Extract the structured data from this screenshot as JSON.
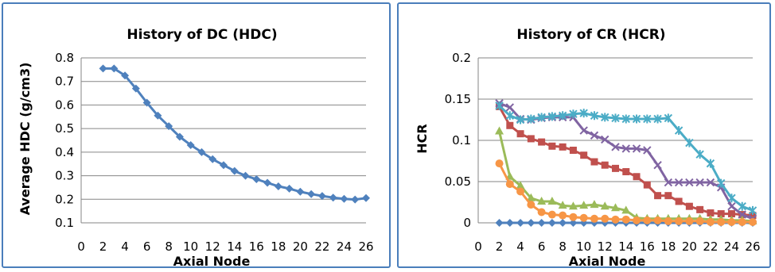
{
  "chart_data": [
    {
      "type": "line",
      "title": "History of DC (HDC)",
      "xlabel": "Axial Node",
      "ylabel": "Average HDC (g/cm3)",
      "xlim": [
        0,
        26
      ],
      "ylim": [
        0.1,
        0.8
      ],
      "xticks": [
        0,
        2,
        4,
        6,
        8,
        10,
        12,
        14,
        16,
        18,
        20,
        22,
        24,
        26
      ],
      "yticks": [
        0.1,
        0.2,
        0.3,
        0.4,
        0.5,
        0.6,
        0.7,
        0.8
      ],
      "ytick_labels": [
        "0.1",
        "0.2",
        "0.3",
        "0.4",
        "0.5",
        "0.6",
        "0.7",
        "0.8"
      ],
      "grid": "horizontal",
      "series": [
        {
          "color": "#4f81bd",
          "marker": "diamond",
          "x": [
            2,
            3,
            4,
            5,
            6,
            7,
            8,
            9,
            10,
            11,
            12,
            13,
            14,
            15,
            16,
            17,
            18,
            19,
            20,
            21,
            22,
            23,
            24,
            25,
            26
          ],
          "values": [
            0.755,
            0.755,
            0.725,
            0.67,
            0.61,
            0.555,
            0.51,
            0.465,
            0.43,
            0.4,
            0.37,
            0.345,
            0.32,
            0.3,
            0.285,
            0.27,
            0.255,
            0.245,
            0.232,
            0.222,
            0.214,
            0.207,
            0.202,
            0.199,
            0.205
          ]
        }
      ]
    },
    {
      "type": "line",
      "title": "History of CR (HCR)",
      "xlabel": "Axial Node",
      "ylabel": "HCR",
      "xlim": [
        0,
        26
      ],
      "ylim": [
        0,
        0.2
      ],
      "xticks": [
        0,
        2,
        4,
        6,
        8,
        10,
        12,
        14,
        16,
        18,
        20,
        22,
        24,
        26
      ],
      "yticks": [
        0,
        0.05,
        0.1,
        0.15,
        0.2
      ],
      "ytick_labels": [
        "0",
        "0.05",
        "0.1",
        "0.15",
        "0.2"
      ],
      "grid": "horizontal",
      "series": [
        {
          "color": "#4f81bd",
          "marker": "diamond",
          "x": [
            2,
            3,
            4,
            5,
            6,
            7,
            8,
            9,
            10,
            11,
            12,
            13,
            14,
            15,
            16,
            17,
            18,
            19,
            20,
            21,
            22,
            23,
            24,
            25,
            26
          ],
          "values": [
            0,
            0,
            0,
            0,
            0,
            0,
            0,
            0,
            0,
            0,
            0,
            0,
            0,
            0,
            0,
            0,
            0,
            0,
            0,
            0,
            0,
            0,
            0,
            0,
            0
          ]
        },
        {
          "color": "#c0504d",
          "marker": "square",
          "x": [
            2,
            3,
            4,
            5,
            6,
            7,
            8,
            9,
            10,
            11,
            12,
            13,
            14,
            15,
            16,
            17,
            18,
            19,
            20,
            21,
            22,
            23,
            24,
            25,
            26
          ],
          "values": [
            0.141,
            0.118,
            0.108,
            0.102,
            0.098,
            0.093,
            0.092,
            0.088,
            0.082,
            0.074,
            0.07,
            0.066,
            0.062,
            0.056,
            0.046,
            0.033,
            0.033,
            0.026,
            0.02,
            0.016,
            0.012,
            0.011,
            0.011,
            0.01,
            0.009
          ]
        },
        {
          "color": "#9bbb59",
          "marker": "triangle",
          "x": [
            2,
            3,
            4,
            5,
            6,
            7,
            8,
            9,
            10,
            11,
            12,
            13,
            14,
            15,
            16,
            17,
            18,
            19,
            20,
            21,
            22,
            23,
            24,
            25,
            26
          ],
          "values": [
            0.111,
            0.056,
            0.045,
            0.03,
            0.026,
            0.026,
            0.021,
            0.02,
            0.021,
            0.022,
            0.02,
            0.018,
            0.015,
            0.006,
            0.005,
            0.005,
            0.005,
            0.005,
            0.005,
            0.005,
            0.004,
            0.004,
            0.003,
            0.003,
            0.002
          ]
        },
        {
          "color": "#8064a2",
          "marker": "x",
          "x": [
            2,
            3,
            4,
            5,
            6,
            7,
            8,
            9,
            10,
            11,
            12,
            13,
            14,
            15,
            16,
            17,
            18,
            19,
            20,
            21,
            22,
            23,
            24,
            25,
            26
          ],
          "values": [
            0.145,
            0.14,
            0.126,
            0.125,
            0.127,
            0.128,
            0.128,
            0.128,
            0.112,
            0.106,
            0.101,
            0.092,
            0.09,
            0.09,
            0.088,
            0.07,
            0.049,
            0.049,
            0.049,
            0.049,
            0.049,
            0.043,
            0.02,
            0.01,
            0.005
          ]
        },
        {
          "color": "#4bacc6",
          "marker": "star",
          "x": [
            2,
            3,
            4,
            5,
            6,
            7,
            8,
            9,
            10,
            11,
            12,
            13,
            14,
            15,
            16,
            17,
            18,
            19,
            20,
            21,
            22,
            23,
            24,
            25,
            26
          ],
          "values": [
            0.142,
            0.13,
            0.125,
            0.126,
            0.128,
            0.129,
            0.13,
            0.132,
            0.133,
            0.13,
            0.128,
            0.127,
            0.126,
            0.126,
            0.126,
            0.126,
            0.127,
            0.112,
            0.097,
            0.083,
            0.072,
            0.048,
            0.03,
            0.02,
            0.015
          ]
        },
        {
          "color": "#f79646",
          "marker": "circle",
          "x": [
            2,
            3,
            4,
            5,
            6,
            7,
            8,
            9,
            10,
            11,
            12,
            13,
            14,
            15,
            16,
            17,
            18,
            19,
            20,
            21,
            22,
            23,
            24,
            25,
            26
          ],
          "values": [
            0.072,
            0.047,
            0.038,
            0.022,
            0.013,
            0.01,
            0.009,
            0.007,
            0.006,
            0.005,
            0.005,
            0.004,
            0.004,
            0.003,
            0.003,
            0.003,
            0.002,
            0.002,
            0.002,
            0.002,
            0.001,
            0.001,
            0.001,
            0.001,
            0.001
          ]
        }
      ]
    }
  ]
}
